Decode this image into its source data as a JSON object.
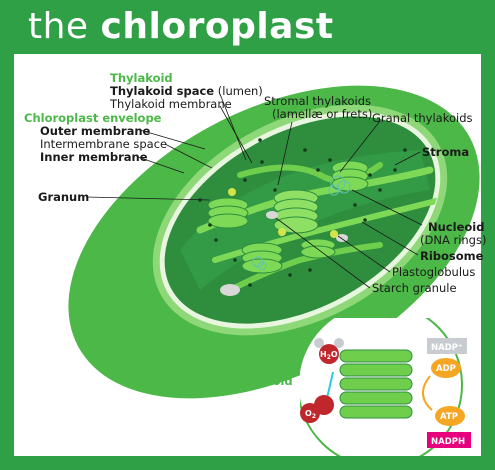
{
  "header": {
    "title_prefix": "the",
    "title_main": "chloroplast"
  },
  "labels": {
    "thylakoid_heading": "Thylakoid",
    "thylakoid_space": "Thylakoid space",
    "lumen": "(lumen)",
    "thylakoid_membrane": "Thylakoid membrane",
    "envelope_heading": "Chloroplast envelope",
    "outer_membrane": "Outer membrane",
    "intermembrane_space": "Intermembrane space",
    "inner_membrane": "Inner membrane",
    "granum": "Granum",
    "stromal_thylakoids": "Stromal thylakoids",
    "lamellae": "(lamellæ or frets)",
    "granal_thylakoids": "Granal thylakoids",
    "stroma": "Stroma",
    "nucleoid": "Nucleoid",
    "dna_rings": "(DNA rings)",
    "ribosome": "Ribosome",
    "plastoglobulus": "Plastoglobulus",
    "starch_granule": "Starch granule"
  },
  "inset": {
    "label": "Thylakoid",
    "h2o": "H",
    "h2o_sub": "2",
    "h2o_end": "O",
    "o2": "O",
    "o2_sub": "2",
    "nadp": "NADP⁺",
    "adp": "ADP",
    "atp": "ATP",
    "nadph": "NADPH"
  },
  "colors": {
    "background": "#2fa045",
    "outer_membrane": "#4cb848",
    "stroma": "#2e8e3e",
    "thylakoid": "#7ed957",
    "label_green": "#4cb848",
    "water": "#c0272d",
    "adp_atp": "#f5a623",
    "nadph": "#e6007e",
    "nadp": "#c8ccd0"
  }
}
